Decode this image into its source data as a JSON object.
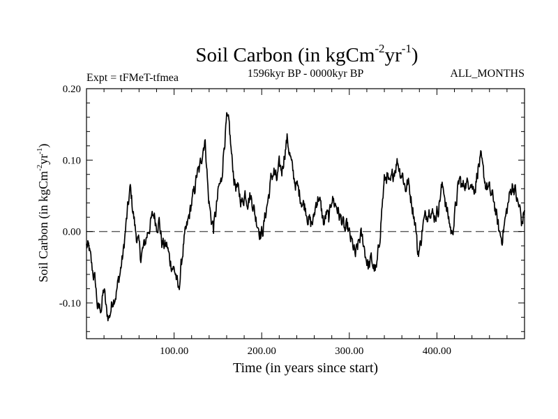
{
  "chart_data": {
    "type": "line",
    "title_main": "Soil Carbon (in kgCm",
    "title_sup1": "-2",
    "title_mid": "yr",
    "title_sup2": "-1",
    "title_end": ")",
    "subtitle_left": "Expt = tFMeT-tfmea",
    "subtitle_center": "1596kyr BP - 0000kyr BP",
    "subtitle_right": "ALL_MONTHS",
    "xlabel": "Time (in years since start)",
    "ylabel_main": "Soil Carbon (in kgCm",
    "ylabel_sup1": "-2",
    "ylabel_mid": "yr",
    "ylabel_sup2": "-1",
    "ylabel_end": ")",
    "xlim": [
      0,
      500
    ],
    "ylim": [
      -0.15,
      0.2
    ],
    "x_ticks": [
      100,
      200,
      300,
      400
    ],
    "x_tick_labels": [
      "100.00",
      "200.00",
      "300.00",
      "400.00"
    ],
    "y_ticks": [
      -0.1,
      0.0,
      0.1,
      0.2
    ],
    "y_tick_labels": [
      "-0.10",
      "0.00",
      "0.10",
      "0.20"
    ],
    "zero_line": 0.0,
    "anchors": [
      [
        0,
        -0.02
      ],
      [
        3,
        -0.025
      ],
      [
        6,
        -0.05
      ],
      [
        10,
        -0.07
      ],
      [
        13,
        -0.11
      ],
      [
        17,
        -0.105
      ],
      [
        20,
        -0.08
      ],
      [
        23,
        -0.115
      ],
      [
        26,
        -0.12
      ],
      [
        30,
        -0.095
      ],
      [
        34,
        -0.085
      ],
      [
        38,
        -0.06
      ],
      [
        42,
        -0.03
      ],
      [
        44,
        -0.005
      ],
      [
        47,
        0.03
      ],
      [
        50,
        0.06
      ],
      [
        53,
        0.03
      ],
      [
        56,
        0.0
      ],
      [
        59,
        -0.015
      ],
      [
        62,
        -0.035
      ],
      [
        66,
        -0.02
      ],
      [
        70,
        0.0
      ],
      [
        74,
        0.015
      ],
      [
        77,
        0.025
      ],
      [
        80,
        0.01
      ],
      [
        83,
        0.015
      ],
      [
        86,
        -0.015
      ],
      [
        89,
        -0.02
      ],
      [
        92,
        -0.02
      ],
      [
        95,
        -0.04
      ],
      [
        99,
        -0.05
      ],
      [
        102,
        -0.06
      ],
      [
        105,
        -0.085
      ],
      [
        108,
        -0.05
      ],
      [
        111,
        -0.015
      ],
      [
        114,
        0.0
      ],
      [
        117,
        0.02
      ],
      [
        120,
        0.04
      ],
      [
        123,
        0.055
      ],
      [
        126,
        0.08
      ],
      [
        129,
        0.085
      ],
      [
        132,
        0.11
      ],
      [
        135,
        0.13
      ],
      [
        137,
        0.1
      ],
      [
        139,
        0.05
      ],
      [
        142,
        0.02
      ],
      [
        145,
        0.005
      ],
      [
        148,
        0.03
      ],
      [
        151,
        0.06
      ],
      [
        154,
        0.07
      ],
      [
        157,
        0.12
      ],
      [
        160,
        0.155
      ],
      [
        163,
        0.145
      ],
      [
        166,
        0.1
      ],
      [
        169,
        0.07
      ],
      [
        172,
        0.06
      ],
      [
        175,
        0.05
      ],
      [
        178,
        0.04
      ],
      [
        181,
        0.055
      ],
      [
        184,
        0.045
      ],
      [
        187,
        0.05
      ],
      [
        190,
        0.04
      ],
      [
        193,
        0.02
      ],
      [
        196,
        0.01
      ],
      [
        199,
        -0.005
      ],
      [
        202,
        0.005
      ],
      [
        205,
        0.03
      ],
      [
        208,
        0.05
      ],
      [
        211,
        0.075
      ],
      [
        214,
        0.085
      ],
      [
        217,
        0.07
      ],
      [
        220,
        0.09
      ],
      [
        223,
        0.085
      ],
      [
        226,
        0.11
      ],
      [
        229,
        0.13
      ],
      [
        232,
        0.11
      ],
      [
        235,
        0.085
      ],
      [
        238,
        0.07
      ],
      [
        241,
        0.06
      ],
      [
        244,
        0.05
      ],
      [
        247,
        0.04
      ],
      [
        250,
        0.035
      ],
      [
        253,
        0.02
      ],
      [
        256,
        0.01
      ],
      [
        259,
        0.015
      ],
      [
        262,
        0.04
      ],
      [
        265,
        0.05
      ],
      [
        268,
        0.03
      ],
      [
        271,
        0.01
      ],
      [
        274,
        0.025
      ],
      [
        277,
        0.015
      ],
      [
        280,
        0.05
      ],
      [
        283,
        0.04
      ],
      [
        286,
        0.035
      ],
      [
        289,
        0.02
      ],
      [
        292,
        0.015
      ],
      [
        295,
        0.0
      ],
      [
        298,
        0.005
      ],
      [
        301,
        -0.01
      ],
      [
        304,
        -0.02
      ],
      [
        307,
        -0.035
      ],
      [
        310,
        -0.02
      ],
      [
        313,
        -0.005
      ],
      [
        316,
        -0.015
      ],
      [
        319,
        -0.035
      ],
      [
        322,
        -0.05
      ],
      [
        325,
        -0.04
      ],
      [
        328,
        -0.05
      ],
      [
        331,
        -0.055
      ],
      [
        334,
        -0.02
      ],
      [
        337,
        0.03
      ],
      [
        340,
        0.07
      ],
      [
        343,
        0.08
      ],
      [
        346,
        0.06
      ],
      [
        349,
        0.075
      ],
      [
        352,
        0.09
      ],
      [
        355,
        0.1
      ],
      [
        358,
        0.085
      ],
      [
        361,
        0.08
      ],
      [
        364,
        0.06
      ],
      [
        367,
        0.07
      ],
      [
        370,
        0.05
      ],
      [
        373,
        0.03
      ],
      [
        376,
        0.005
      ],
      [
        378,
        -0.03
      ],
      [
        381,
        -0.02
      ],
      [
        384,
        0.01
      ],
      [
        387,
        0.02
      ],
      [
        390,
        0.03
      ],
      [
        393,
        0.035
      ],
      [
        396,
        0.02
      ],
      [
        399,
        0.025
      ],
      [
        402,
        0.035
      ],
      [
        405,
        0.06
      ],
      [
        408,
        0.06
      ],
      [
        411,
        0.03
      ],
      [
        414,
        0.015
      ],
      [
        417,
        -0.005
      ],
      [
        420,
        0.02
      ],
      [
        423,
        0.05
      ],
      [
        426,
        0.075
      ],
      [
        429,
        0.06
      ],
      [
        432,
        0.07
      ],
      [
        435,
        0.065
      ],
      [
        438,
        0.075
      ],
      [
        441,
        0.06
      ],
      [
        444,
        0.065
      ],
      [
        447,
        0.09
      ],
      [
        450,
        0.1
      ],
      [
        453,
        0.08
      ],
      [
        456,
        0.065
      ],
      [
        459,
        0.06
      ],
      [
        462,
        0.05
      ],
      [
        465,
        0.045
      ],
      [
        468,
        0.02
      ],
      [
        471,
        0.0
      ],
      [
        474,
        -0.01
      ],
      [
        477,
        0.01
      ],
      [
        480,
        0.03
      ],
      [
        483,
        0.05
      ],
      [
        486,
        0.065
      ],
      [
        489,
        0.06
      ],
      [
        492,
        0.04
      ],
      [
        495,
        0.03
      ],
      [
        497,
        0.01
      ],
      [
        500,
        0.03
      ]
    ]
  }
}
